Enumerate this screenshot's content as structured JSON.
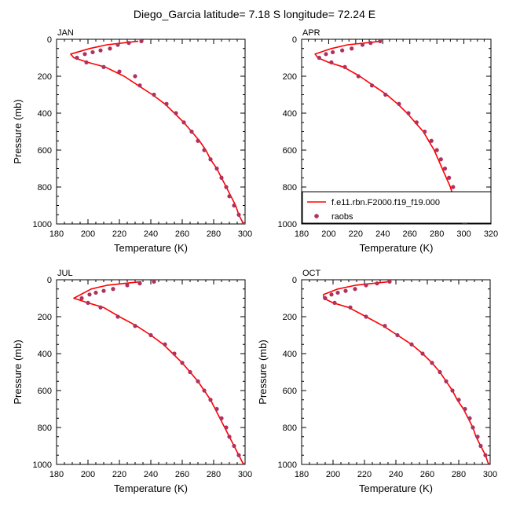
{
  "figure": {
    "title": "Diego_Garcia  latitude= 7.18 S longitude= 72.24 E"
  },
  "legend": {
    "model_label": "f.e11.rbn.F2000.f19_f19.000",
    "obs_label": "raobs",
    "model_color": "#ff0000",
    "obs_color": "#b03060"
  },
  "chart_data": [
    {
      "type": "line",
      "panel": "JAN",
      "xlabel": "Temperature (K)",
      "ylabel": "Pressure (mb)",
      "xlim": [
        180,
        300
      ],
      "ylim": [
        1000,
        0
      ],
      "xticks": [
        180,
        200,
        220,
        240,
        260,
        280,
        300
      ],
      "yticks": [
        0,
        200,
        400,
        600,
        800,
        1000
      ],
      "series": [
        {
          "name": "f.e11.rbn.F2000.f19_f19.000",
          "kind": "line",
          "points": [
            [
              232,
              10
            ],
            [
              222,
              20
            ],
            [
              212,
              30
            ],
            [
              201,
              50
            ],
            [
              189,
              80
            ],
            [
              191,
              100
            ],
            [
              200,
              125
            ],
            [
              211,
              150
            ],
            [
              223,
              200
            ],
            [
              232,
              250
            ],
            [
              241,
              300
            ],
            [
              249,
              350
            ],
            [
              255,
              400
            ],
            [
              261,
              450
            ],
            [
              266,
              500
            ],
            [
              271,
              550
            ],
            [
              275,
              600
            ],
            [
              278,
              650
            ],
            [
              282,
              700
            ],
            [
              285,
              750
            ],
            [
              288,
              800
            ],
            [
              291,
              850
            ],
            [
              294,
              900
            ],
            [
              296,
              950
            ],
            [
              299,
              1000
            ]
          ]
        },
        {
          "name": "raobs",
          "kind": "scatter",
          "points": [
            [
              234,
              10
            ],
            [
              226,
              20
            ],
            [
              219,
              30
            ],
            [
              214,
              50
            ],
            [
              208,
              60
            ],
            [
              203,
              70
            ],
            [
              198,
              80
            ],
            [
              193,
              100
            ],
            [
              199,
              125
            ],
            [
              210,
              150
            ],
            [
              220,
              175
            ],
            [
              230,
              200
            ],
            [
              233,
              250
            ],
            [
              242,
              300
            ],
            [
              250,
              350
            ],
            [
              256,
              400
            ],
            [
              261,
              450
            ],
            [
              266,
              500
            ],
            [
              270,
              550
            ],
            [
              274,
              600
            ],
            [
              278,
              650
            ],
            [
              282,
              700
            ],
            [
              285,
              750
            ],
            [
              288,
              800
            ],
            [
              290,
              850
            ],
            [
              293,
              900
            ],
            [
              296,
              950
            ],
            [
              299,
              1000
            ]
          ]
        }
      ]
    },
    {
      "type": "line",
      "panel": "APR",
      "xlabel": "Temperature (K)",
      "ylabel": "",
      "xlim": [
        180,
        320
      ],
      "ylim": [
        1000,
        0
      ],
      "xticks": [
        180,
        200,
        220,
        240,
        260,
        280,
        300,
        320
      ],
      "yticks": [
        0,
        200,
        400,
        600,
        800,
        1000
      ],
      "series": [
        {
          "name": "f.e11.rbn.F2000.f19_f19.000",
          "kind": "line",
          "points": [
            [
              239,
              10
            ],
            [
              227,
              20
            ],
            [
              214,
              30
            ],
            [
              202,
              50
            ],
            [
              190,
              80
            ],
            [
              192,
              100
            ],
            [
              200,
              125
            ],
            [
              211,
              150
            ],
            [
              223,
              200
            ],
            [
              233,
              250
            ],
            [
              243,
              300
            ],
            [
              251,
              350
            ],
            [
              258,
              400
            ],
            [
              264,
              450
            ],
            [
              270,
              500
            ],
            [
              274,
              550
            ],
            [
              278,
              600
            ],
            [
              281,
              650
            ],
            [
              284,
              700
            ],
            [
              287,
              750
            ],
            [
              290,
              800
            ],
            [
              292,
              850
            ],
            [
              295,
              900
            ],
            [
              297,
              950
            ],
            [
              299,
              1000
            ]
          ]
        },
        {
          "name": "raobs",
          "kind": "scatter",
          "points": [
            [
              238,
              10
            ],
            [
              231,
              20
            ],
            [
              225,
              30
            ],
            [
              217,
              50
            ],
            [
              210,
              60
            ],
            [
              203,
              70
            ],
            [
              198,
              80
            ],
            [
              193,
              100
            ],
            [
              202,
              125
            ],
            [
              212,
              150
            ],
            [
              222,
              200
            ],
            [
              232,
              250
            ],
            [
              242,
              300
            ],
            [
              252,
              350
            ],
            [
              259,
              400
            ],
            [
              265,
              450
            ],
            [
              271,
              500
            ],
            [
              276,
              550
            ],
            [
              280,
              600
            ],
            [
              283,
              650
            ],
            [
              286,
              700
            ],
            [
              289,
              750
            ],
            [
              292,
              800
            ],
            [
              294,
              850
            ],
            [
              296,
              900
            ],
            [
              299,
              950
            ],
            [
              301,
              1000
            ]
          ]
        }
      ]
    },
    {
      "type": "line",
      "panel": "JUL",
      "xlabel": "Temperature (K)",
      "ylabel": "Pressure (mb)",
      "xlim": [
        180,
        300
      ],
      "ylim": [
        1000,
        0
      ],
      "xticks": [
        180,
        200,
        220,
        240,
        260,
        280,
        300
      ],
      "yticks": [
        0,
        200,
        400,
        600,
        800,
        1000
      ],
      "series": [
        {
          "name": "f.e11.rbn.F2000.f19_f19.000",
          "kind": "line",
          "points": [
            [
              234,
              10
            ],
            [
              223,
              20
            ],
            [
              212,
              30
            ],
            [
              202,
              50
            ],
            [
              191,
              100
            ],
            [
              200,
              125
            ],
            [
              210,
              150
            ],
            [
              220,
              200
            ],
            [
              231,
              250
            ],
            [
              240,
              300
            ],
            [
              248,
              350
            ],
            [
              254,
              400
            ],
            [
              260,
              450
            ],
            [
              265,
              500
            ],
            [
              270,
              550
            ],
            [
              274,
              600
            ],
            [
              278,
              650
            ],
            [
              281,
              700
            ],
            [
              284,
              750
            ],
            [
              287,
              800
            ],
            [
              290,
              850
            ],
            [
              293,
              900
            ],
            [
              296,
              950
            ],
            [
              299,
              1000
            ]
          ]
        },
        {
          "name": "raobs",
          "kind": "scatter",
          "points": [
            [
              242,
              10
            ],
            [
              233,
              20
            ],
            [
              225,
              30
            ],
            [
              216,
              50
            ],
            [
              210,
              60
            ],
            [
              205,
              70
            ],
            [
              201,
              80
            ],
            [
              196,
              100
            ],
            [
              200,
              125
            ],
            [
              208,
              150
            ],
            [
              219,
              200
            ],
            [
              230,
              250
            ],
            [
              240,
              300
            ],
            [
              249,
              350
            ],
            [
              255,
              400
            ],
            [
              260,
              450
            ],
            [
              265,
              500
            ],
            [
              270,
              550
            ],
            [
              274,
              600
            ],
            [
              278,
              650
            ],
            [
              282,
              700
            ],
            [
              285,
              750
            ],
            [
              288,
              800
            ],
            [
              290,
              850
            ],
            [
              293,
              900
            ],
            [
              296,
              950
            ],
            [
              300,
              1000
            ]
          ]
        }
      ]
    },
    {
      "type": "line",
      "panel": "OCT",
      "xlabel": "Temperature (K)",
      "ylabel": "Pressure (mb)",
      "xlim": [
        180,
        300
      ],
      "ylim": [
        1000,
        0
      ],
      "xticks": [
        180,
        200,
        220,
        240,
        260,
        280,
        300
      ],
      "yticks": [
        0,
        200,
        400,
        600,
        800,
        1000
      ],
      "series": [
        {
          "name": "f.e11.rbn.F2000.f19_f19.000",
          "kind": "line",
          "points": [
            [
              236,
              10
            ],
            [
              225,
              20
            ],
            [
              214,
              30
            ],
            [
              203,
              50
            ],
            [
              194,
              80
            ],
            [
              194,
              100
            ],
            [
              200,
              125
            ],
            [
              210,
              150
            ],
            [
              221,
              200
            ],
            [
              232,
              250
            ],
            [
              241,
              300
            ],
            [
              250,
              350
            ],
            [
              257,
              400
            ],
            [
              263,
              450
            ],
            [
              268,
              500
            ],
            [
              272,
              550
            ],
            [
              276,
              600
            ],
            [
              279,
              650
            ],
            [
              283,
              700
            ],
            [
              286,
              750
            ],
            [
              289,
              800
            ],
            [
              291,
              850
            ],
            [
              294,
              900
            ],
            [
              297,
              950
            ],
            [
              299,
              1000
            ]
          ]
        },
        {
          "name": "raobs",
          "kind": "scatter",
          "points": [
            [
              236,
              10
            ],
            [
              228,
              20
            ],
            [
              221,
              30
            ],
            [
              214,
              50
            ],
            [
              208,
              60
            ],
            [
              203,
              70
            ],
            [
              199,
              80
            ],
            [
              195,
              100
            ],
            [
              201,
              125
            ],
            [
              211,
              150
            ],
            [
              221,
              200
            ],
            [
              233,
              250
            ],
            [
              241,
              300
            ],
            [
              250,
              350
            ],
            [
              257,
              400
            ],
            [
              263,
              450
            ],
            [
              268,
              500
            ],
            [
              272,
              550
            ],
            [
              276,
              600
            ],
            [
              280,
              650
            ],
            [
              284,
              700
            ],
            [
              287,
              750
            ],
            [
              289,
              800
            ],
            [
              292,
              850
            ],
            [
              294,
              900
            ],
            [
              297,
              950
            ],
            [
              300,
              1000
            ]
          ]
        }
      ]
    }
  ]
}
